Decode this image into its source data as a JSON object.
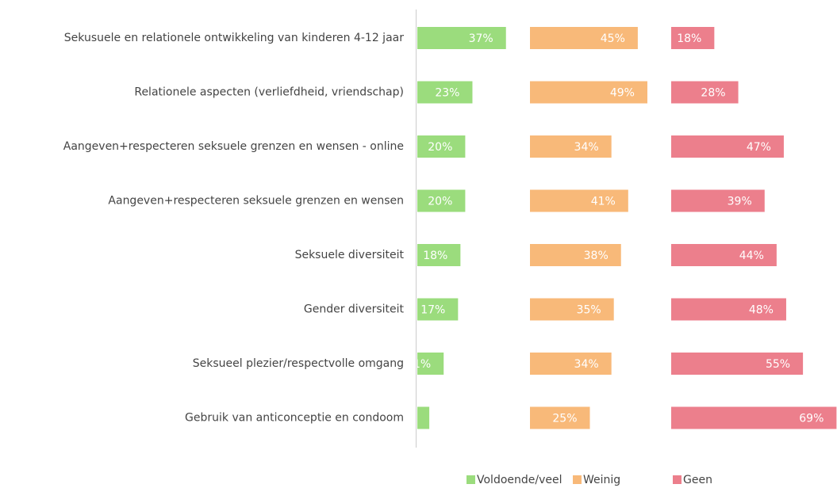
{
  "chart_data": {
    "type": "bar",
    "orientation": "horizontal",
    "layout": "panels",
    "categories": [
      "Sekusuele en relationele ontwikkeling van kinderen 4-12 jaar",
      "Relationele aspecten (verliefdheid, vriendschap)",
      "Aangeven+respecteren seksuele grenzen en wensen - online",
      "Aangeven+respecteren seksuele grenzen en wensen",
      "Seksuele diversiteit",
      "Gender diversiteit",
      "Seksueel plezier/respectvolle omgang",
      "Gebruik van anticonceptie en condoom"
    ],
    "series": [
      {
        "name": "Voldoende/veel",
        "color": "#9bdc7d",
        "values": [
          37,
          23,
          20,
          20,
          18,
          17,
          11,
          5
        ],
        "value_labels": [
          "37%",
          "23%",
          "20%",
          "20%",
          "18%",
          "17%",
          "11%",
          null
        ]
      },
      {
        "name": "Weinig",
        "color": "#f8b979",
        "values": [
          45,
          49,
          34,
          41,
          38,
          35,
          34,
          25
        ],
        "value_labels": [
          "45%",
          "49%",
          "34%",
          "41%",
          "38%",
          "35%",
          "34%",
          "25%"
        ]
      },
      {
        "name": "Geen",
        "color": "#ec7f8c",
        "values": [
          18,
          28,
          47,
          39,
          44,
          48,
          55,
          69
        ],
        "value_labels": [
          "18%",
          "28%",
          "47%",
          "39%",
          "44%",
          "48%",
          "55%",
          "69%"
        ]
      }
    ],
    "legend": "bottom"
  }
}
